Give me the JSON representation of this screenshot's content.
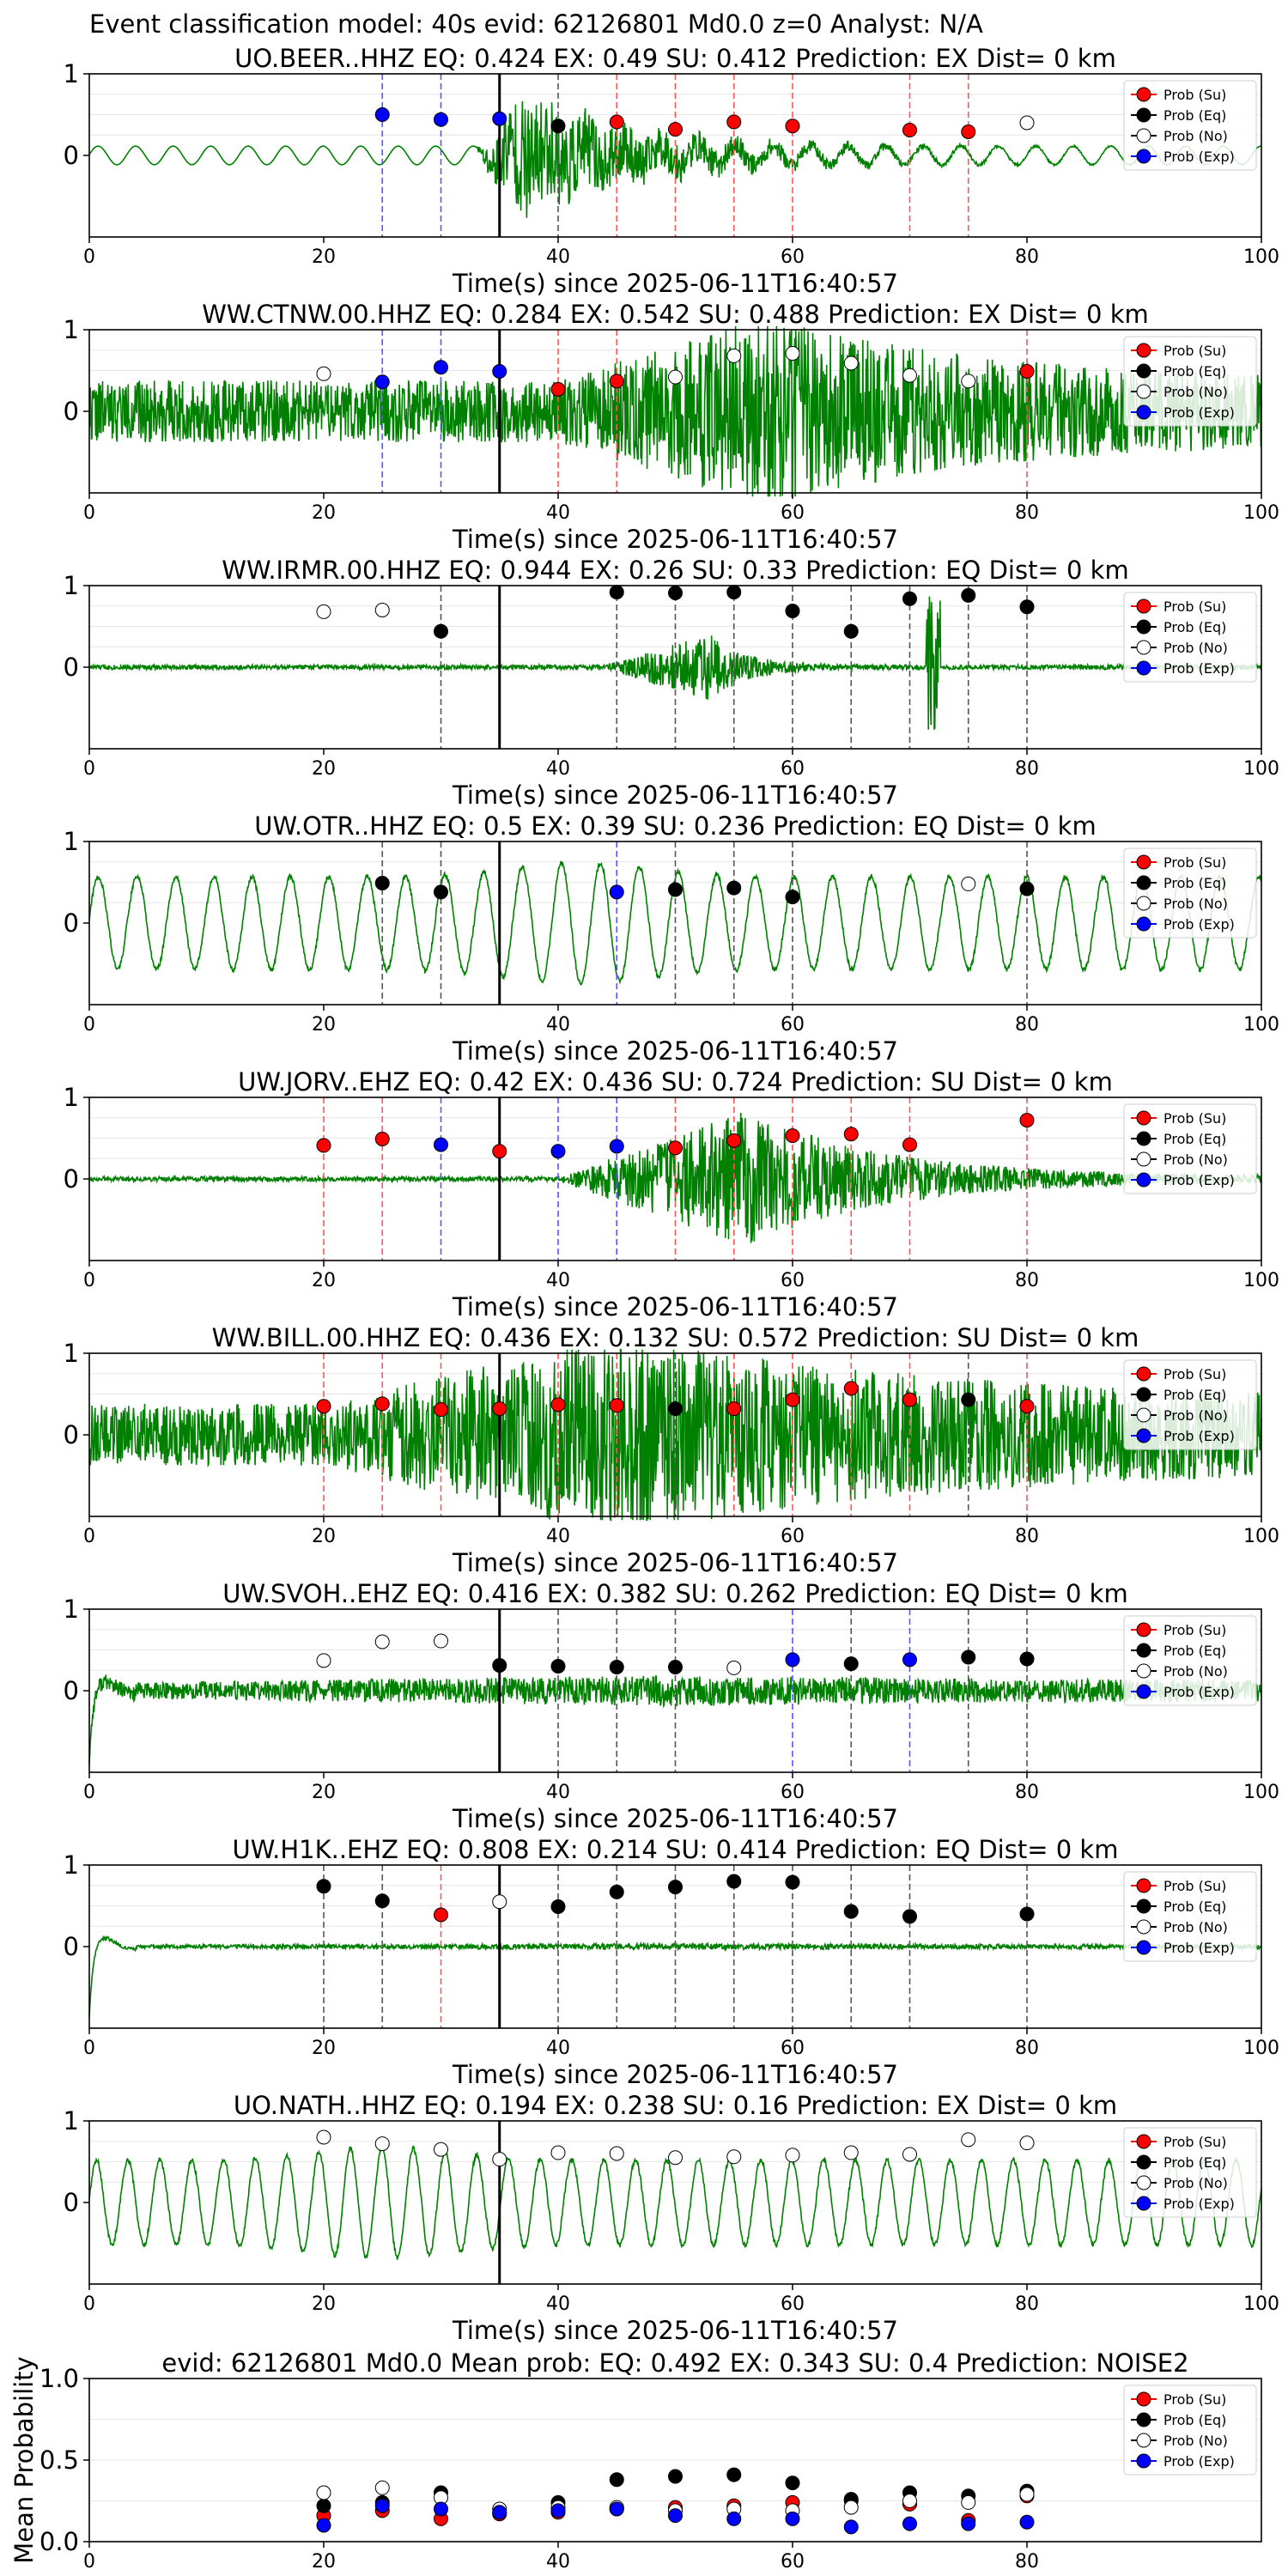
{
  "figure_title": "Event classification model: 40s evid: 62126801 Md0.0 z=0 Analyst: N/A",
  "colors": {
    "su": "#ff0000",
    "eq": "#000000",
    "no": "#ffffff",
    "exp": "#0000ff",
    "waveform": "#008000"
  },
  "chart_data": [
    {
      "type": "scatter",
      "title": "UO.BEER..HHZ   EQ: 0.424  EX: 0.49  SU: 0.412   Prediction: EX    Dist= 0 km",
      "xlabel": "Time(s) since 2025-06-11T16:40:57",
      "xlim": [
        0,
        100
      ],
      "ylim": [
        -1,
        1
      ],
      "x_ticks": [
        0,
        20,
        40,
        60,
        80,
        100
      ],
      "y_ticks": [
        0,
        1
      ],
      "legend": [
        "Prob (Su)",
        "Prob (Eq)",
        "Prob (No)",
        "Prob (Exp)"
      ],
      "legend_position": "upper right",
      "origin_line_x": 35,
      "grid": true,
      "waveform": {
        "style": "emergent",
        "onset": 33,
        "peak": 37,
        "base": 0.12,
        "amp": 0.8,
        "period": 3.2,
        "decay": 11,
        "seed": 11
      },
      "points": [
        {
          "x": 25,
          "y": 0.5,
          "class": "exp"
        },
        {
          "x": 30,
          "y": 0.44,
          "class": "exp"
        },
        {
          "x": 35,
          "y": 0.45,
          "class": "exp"
        },
        {
          "x": 40,
          "y": 0.36,
          "class": "eq"
        },
        {
          "x": 45,
          "y": 0.41,
          "class": "su"
        },
        {
          "x": 50,
          "y": 0.32,
          "class": "su"
        },
        {
          "x": 55,
          "y": 0.41,
          "class": "su"
        },
        {
          "x": 60,
          "y": 0.36,
          "class": "su"
        },
        {
          "x": 70,
          "y": 0.31,
          "class": "su"
        },
        {
          "x": 75,
          "y": 0.29,
          "class": "su"
        },
        {
          "x": 80,
          "y": 0.4,
          "class": "no"
        }
      ]
    },
    {
      "type": "scatter",
      "title": "WW.CTNW.00.HHZ   EQ: 0.284  EX: 0.542  SU: 0.488   Prediction: EX    Dist= 0 km",
      "xlabel": "Time(s) since 2025-06-11T16:40:57",
      "xlim": [
        0,
        100
      ],
      "ylim": [
        -1,
        1
      ],
      "x_ticks": [
        0,
        20,
        40,
        60,
        80,
        100
      ],
      "y_ticks": [
        0,
        1
      ],
      "legend": [
        "Prob (Su)",
        "Prob (Eq)",
        "Prob (No)",
        "Prob (Exp)"
      ],
      "legend_position": "upper right",
      "origin_line_x": 35,
      "grid": true,
      "waveform": {
        "style": "noisy",
        "onset": 40,
        "peak": 58,
        "base": 0.4,
        "amp": 0.85,
        "period": 0.3,
        "decay": 18,
        "seed": 22
      },
      "points": [
        {
          "x": 20,
          "y": 0.46,
          "class": "no"
        },
        {
          "x": 25,
          "y": 0.36,
          "class": "exp"
        },
        {
          "x": 30,
          "y": 0.54,
          "class": "exp"
        },
        {
          "x": 35,
          "y": 0.49,
          "class": "exp"
        },
        {
          "x": 40,
          "y": 0.27,
          "class": "su"
        },
        {
          "x": 45,
          "y": 0.37,
          "class": "su"
        },
        {
          "x": 50,
          "y": 0.42,
          "class": "no"
        },
        {
          "x": 55,
          "y": 0.68,
          "class": "no"
        },
        {
          "x": 60,
          "y": 0.71,
          "class": "no"
        },
        {
          "x": 65,
          "y": 0.59,
          "class": "no"
        },
        {
          "x": 70,
          "y": 0.44,
          "class": "no"
        },
        {
          "x": 75,
          "y": 0.37,
          "class": "no"
        },
        {
          "x": 80,
          "y": 0.49,
          "class": "su"
        }
      ]
    },
    {
      "type": "scatter",
      "title": "WW.IRMR.00.HHZ   EQ: 0.944  EX: 0.26  SU: 0.33   Prediction: EQ    Dist= 0 km",
      "xlabel": "Time(s) since 2025-06-11T16:40:57",
      "xlim": [
        0,
        100
      ],
      "ylim": [
        -1,
        1
      ],
      "x_ticks": [
        0,
        20,
        40,
        60,
        80,
        100
      ],
      "y_ticks": [
        0,
        1
      ],
      "legend": [
        "Prob (Su)",
        "Prob (Eq)",
        "Prob (No)",
        "Prob (Exp)"
      ],
      "legend_position": "upper right",
      "origin_line_x": 35,
      "grid": true,
      "waveform": {
        "style": "spiky",
        "onset": 44,
        "peak": 53,
        "base": 0.03,
        "amp": 0.4,
        "period": 0.3,
        "decay": 3,
        "seed": 33,
        "spike_x": 72,
        "spike_amp": 0.95
      },
      "points": [
        {
          "x": 20,
          "y": 0.68,
          "class": "no"
        },
        {
          "x": 25,
          "y": 0.7,
          "class": "no"
        },
        {
          "x": 30,
          "y": 0.44,
          "class": "eq"
        },
        {
          "x": 45,
          "y": 0.92,
          "class": "eq"
        },
        {
          "x": 50,
          "y": 0.91,
          "class": "eq"
        },
        {
          "x": 55,
          "y": 0.92,
          "class": "eq"
        },
        {
          "x": 60,
          "y": 0.69,
          "class": "eq"
        },
        {
          "x": 65,
          "y": 0.44,
          "class": "eq"
        },
        {
          "x": 70,
          "y": 0.84,
          "class": "eq"
        },
        {
          "x": 75,
          "y": 0.88,
          "class": "eq"
        },
        {
          "x": 80,
          "y": 0.74,
          "class": "eq"
        }
      ]
    },
    {
      "type": "scatter",
      "title": "UW.OTR..HHZ   EQ: 0.5  EX: 0.39  SU: 0.236   Prediction: EQ    Dist= 0 km",
      "xlabel": "Time(s) since 2025-06-11T16:40:57",
      "xlim": [
        0,
        100
      ],
      "ylim": [
        -1,
        1
      ],
      "x_ticks": [
        0,
        20,
        40,
        60,
        80,
        100
      ],
      "y_ticks": [
        0,
        1
      ],
      "legend": [
        "Prob (Su)",
        "Prob (Eq)",
        "Prob (No)",
        "Prob (Exp)"
      ],
      "legend_position": "upper right",
      "origin_line_x": 35,
      "grid": true,
      "waveform": {
        "style": "sine",
        "onset": 0,
        "peak": 42,
        "base": 0.6,
        "amp": 0.85,
        "period": 3.3,
        "decay": 40,
        "seed": 44
      },
      "points": [
        {
          "x": 25,
          "y": 0.49,
          "class": "eq"
        },
        {
          "x": 30,
          "y": 0.38,
          "class": "eq"
        },
        {
          "x": 45,
          "y": 0.38,
          "class": "exp"
        },
        {
          "x": 50,
          "y": 0.41,
          "class": "eq"
        },
        {
          "x": 55,
          "y": 0.43,
          "class": "eq"
        },
        {
          "x": 60,
          "y": 0.32,
          "class": "eq"
        },
        {
          "x": 75,
          "y": 0.48,
          "class": "no"
        },
        {
          "x": 80,
          "y": 0.42,
          "class": "eq"
        }
      ]
    },
    {
      "type": "scatter",
      "title": "UW.JORV..EHZ   EQ: 0.42  EX: 0.436  SU: 0.724   Prediction: SU    Dist= 0 km",
      "xlabel": "Time(s) since 2025-06-11T16:40:57",
      "xlim": [
        0,
        100
      ],
      "ylim": [
        -1,
        1
      ],
      "x_ticks": [
        0,
        20,
        40,
        60,
        80,
        100
      ],
      "y_ticks": [
        0,
        1
      ],
      "legend": [
        "Prob (Su)",
        "Prob (Eq)",
        "Prob (No)",
        "Prob (Exp)"
      ],
      "legend_position": "upper right",
      "origin_line_x": 35,
      "grid": true,
      "waveform": {
        "style": "emergent",
        "onset": 40,
        "peak": 56,
        "base": 0.03,
        "amp": 0.85,
        "period": 0.35,
        "decay": 12,
        "seed": 55
      },
      "points": [
        {
          "x": 20,
          "y": 0.41,
          "class": "su"
        },
        {
          "x": 25,
          "y": 0.49,
          "class": "su"
        },
        {
          "x": 30,
          "y": 0.42,
          "class": "exp"
        },
        {
          "x": 35,
          "y": 0.34,
          "class": "su"
        },
        {
          "x": 40,
          "y": 0.34,
          "class": "exp"
        },
        {
          "x": 45,
          "y": 0.4,
          "class": "exp"
        },
        {
          "x": 50,
          "y": 0.38,
          "class": "su"
        },
        {
          "x": 55,
          "y": 0.47,
          "class": "su"
        },
        {
          "x": 60,
          "y": 0.53,
          "class": "su"
        },
        {
          "x": 65,
          "y": 0.55,
          "class": "su"
        },
        {
          "x": 70,
          "y": 0.42,
          "class": "su"
        },
        {
          "x": 80,
          "y": 0.72,
          "class": "su"
        }
      ]
    },
    {
      "type": "scatter",
      "title": "WW.BILL.00.HHZ   EQ: 0.436  EX: 0.132  SU: 0.572   Prediction: SU    Dist= 0 km",
      "xlabel": "Time(s) since 2025-06-11T16:40:57",
      "xlim": [
        0,
        100
      ],
      "ylim": [
        -1,
        1
      ],
      "x_ticks": [
        0,
        20,
        40,
        60,
        80,
        100
      ],
      "y_ticks": [
        0,
        1
      ],
      "legend": [
        "Prob (Su)",
        "Prob (Eq)",
        "Prob (No)",
        "Prob (Exp)"
      ],
      "legend_position": "upper right",
      "origin_line_x": 35,
      "grid": true,
      "waveform": {
        "style": "noisy",
        "onset": 20,
        "peak": 45,
        "base": 0.4,
        "amp": 0.9,
        "period": 0.3,
        "decay": 30,
        "seed": 66
      },
      "points": [
        {
          "x": 20,
          "y": 0.35,
          "class": "su"
        },
        {
          "x": 25,
          "y": 0.38,
          "class": "su"
        },
        {
          "x": 30,
          "y": 0.31,
          "class": "su"
        },
        {
          "x": 35,
          "y": 0.32,
          "class": "su"
        },
        {
          "x": 40,
          "y": 0.37,
          "class": "su"
        },
        {
          "x": 45,
          "y": 0.36,
          "class": "su"
        },
        {
          "x": 50,
          "y": 0.32,
          "class": "eq"
        },
        {
          "x": 55,
          "y": 0.32,
          "class": "su"
        },
        {
          "x": 60,
          "y": 0.43,
          "class": "su"
        },
        {
          "x": 65,
          "y": 0.57,
          "class": "su"
        },
        {
          "x": 70,
          "y": 0.43,
          "class": "su"
        },
        {
          "x": 75,
          "y": 0.43,
          "class": "eq"
        },
        {
          "x": 80,
          "y": 0.35,
          "class": "su"
        }
      ]
    },
    {
      "type": "scatter",
      "title": "UW.SVOH..EHZ   EQ: 0.416  EX: 0.382  SU: 0.262   Prediction: EQ    Dist= 0 km",
      "xlabel": "Time(s) since 2025-06-11T16:40:57",
      "xlim": [
        0,
        100
      ],
      "ylim": [
        -1,
        1
      ],
      "x_ticks": [
        0,
        20,
        40,
        60,
        80,
        100
      ],
      "y_ticks": [
        0,
        1
      ],
      "legend": [
        "Prob (Su)",
        "Prob (Eq)",
        "Prob (No)",
        "Prob (Exp)"
      ],
      "legend_position": "upper right",
      "origin_line_x": 35,
      "grid": true,
      "waveform": {
        "style": "transient",
        "onset": 0,
        "peak": 50,
        "base": 0.1,
        "amp": 0.1,
        "period": 0.3,
        "decay": 50,
        "seed": 77
      },
      "points": [
        {
          "x": 20,
          "y": 0.37,
          "class": "no"
        },
        {
          "x": 25,
          "y": 0.6,
          "class": "no"
        },
        {
          "x": 30,
          "y": 0.61,
          "class": "no"
        },
        {
          "x": 35,
          "y": 0.31,
          "class": "eq"
        },
        {
          "x": 40,
          "y": 0.3,
          "class": "eq"
        },
        {
          "x": 45,
          "y": 0.29,
          "class": "eq"
        },
        {
          "x": 50,
          "y": 0.29,
          "class": "eq"
        },
        {
          "x": 55,
          "y": 0.28,
          "class": "no"
        },
        {
          "x": 60,
          "y": 0.38,
          "class": "exp"
        },
        {
          "x": 65,
          "y": 0.33,
          "class": "eq"
        },
        {
          "x": 70,
          "y": 0.38,
          "class": "exp"
        },
        {
          "x": 75,
          "y": 0.41,
          "class": "eq"
        },
        {
          "x": 80,
          "y": 0.39,
          "class": "eq"
        }
      ]
    },
    {
      "type": "scatter",
      "title": "UW.H1K..EHZ   EQ: 0.808  EX: 0.214  SU: 0.414   Prediction: EQ    Dist= 0 km",
      "xlabel": "Time(s) since 2025-06-11T16:40:57",
      "xlim": [
        0,
        100
      ],
      "ylim": [
        -1,
        1
      ],
      "x_ticks": [
        0,
        20,
        40,
        60,
        80,
        100
      ],
      "y_ticks": [
        0,
        1
      ],
      "legend": [
        "Prob (Su)",
        "Prob (Eq)",
        "Prob (No)",
        "Prob (Exp)"
      ],
      "legend_position": "upper right",
      "origin_line_x": 35,
      "grid": true,
      "waveform": {
        "style": "transient",
        "onset": 0,
        "peak": 50,
        "base": 0.02,
        "amp": 0.02,
        "period": 0.3,
        "decay": 50,
        "seed": 88
      },
      "points": [
        {
          "x": 20,
          "y": 0.74,
          "class": "eq"
        },
        {
          "x": 25,
          "y": 0.56,
          "class": "eq"
        },
        {
          "x": 30,
          "y": 0.39,
          "class": "su"
        },
        {
          "x": 35,
          "y": 0.55,
          "class": "no"
        },
        {
          "x": 40,
          "y": 0.49,
          "class": "eq"
        },
        {
          "x": 45,
          "y": 0.67,
          "class": "eq"
        },
        {
          "x": 50,
          "y": 0.73,
          "class": "eq"
        },
        {
          "x": 55,
          "y": 0.8,
          "class": "eq"
        },
        {
          "x": 60,
          "y": 0.79,
          "class": "eq"
        },
        {
          "x": 65,
          "y": 0.43,
          "class": "eq"
        },
        {
          "x": 70,
          "y": 0.37,
          "class": "eq"
        },
        {
          "x": 80,
          "y": 0.4,
          "class": "eq"
        }
      ]
    },
    {
      "type": "scatter",
      "title": "UO.NATH..HHZ   EQ: 0.194  EX: 0.238  SU: 0.16   Prediction: EX    Dist= 0 km",
      "xlabel": "Time(s) since 2025-06-11T16:40:57",
      "xlim": [
        0,
        100
      ],
      "ylim": [
        -1,
        1
      ],
      "x_ticks": [
        0,
        20,
        40,
        60,
        80,
        100
      ],
      "y_ticks": [
        0,
        1
      ],
      "legend": [
        "Prob (Su)",
        "Prob (Eq)",
        "Prob (No)",
        "Prob (Exp)"
      ],
      "legend_position": "upper right",
      "origin_line_x": 35,
      "grid": true,
      "waveform": {
        "style": "sine",
        "onset": 0,
        "peak": 25,
        "base": 0.55,
        "amp": 0.9,
        "period": 2.7,
        "decay": 60,
        "seed": 99
      },
      "points": [
        {
          "x": 20,
          "y": 0.8,
          "class": "no"
        },
        {
          "x": 25,
          "y": 0.72,
          "class": "no"
        },
        {
          "x": 30,
          "y": 0.65,
          "class": "no"
        },
        {
          "x": 35,
          "y": 0.53,
          "class": "no"
        },
        {
          "x": 40,
          "y": 0.61,
          "class": "no"
        },
        {
          "x": 45,
          "y": 0.6,
          "class": "no"
        },
        {
          "x": 50,
          "y": 0.55,
          "class": "no"
        },
        {
          "x": 55,
          "y": 0.56,
          "class": "no"
        },
        {
          "x": 60,
          "y": 0.58,
          "class": "no"
        },
        {
          "x": 65,
          "y": 0.61,
          "class": "no"
        },
        {
          "x": 70,
          "y": 0.59,
          "class": "no"
        },
        {
          "x": 75,
          "y": 0.77,
          "class": "no"
        },
        {
          "x": 80,
          "y": 0.73,
          "class": "no"
        }
      ]
    },
    {
      "type": "scatter",
      "title": "evid: 62126801  Md0.0   Mean prob:   EQ: 0.492  EX: 0.343  SU: 0.4   Prediction: NOISE2",
      "xlabel": "",
      "ylabel": "Mean Probability",
      "xlim": [
        0,
        100
      ],
      "ylim": [
        0,
        1
      ],
      "x_ticks": [
        0,
        20,
        40,
        60,
        80
      ],
      "y_ticks": [
        0.0,
        0.5,
        1.0
      ],
      "legend": [
        "Prob (Su)",
        "Prob (Eq)",
        "Prob (No)",
        "Prob (Exp)"
      ],
      "legend_position": "upper right",
      "grid": true,
      "series": [
        {
          "name": "Prob (Su)",
          "class": "su",
          "x": [
            20,
            25,
            30,
            35,
            40,
            45,
            50,
            55,
            60,
            65,
            70,
            75,
            80
          ],
          "values": [
            0.16,
            0.19,
            0.14,
            0.17,
            0.18,
            0.2,
            0.21,
            0.22,
            0.24,
            0.25,
            0.23,
            0.13,
            0.28
          ]
        },
        {
          "name": "Prob (Eq)",
          "class": "eq",
          "x": [
            20,
            25,
            30,
            35,
            40,
            45,
            50,
            55,
            60,
            65,
            70,
            75,
            80
          ],
          "values": [
            0.22,
            0.24,
            0.3,
            0.18,
            0.24,
            0.38,
            0.4,
            0.41,
            0.36,
            0.26,
            0.3,
            0.28,
            0.31
          ]
        },
        {
          "name": "Prob (No)",
          "class": "no",
          "x": [
            20,
            25,
            30,
            35,
            40,
            45,
            50,
            55,
            60,
            65,
            70,
            75,
            80
          ],
          "values": [
            0.3,
            0.33,
            0.27,
            0.2,
            0.21,
            0.21,
            0.19,
            0.2,
            0.19,
            0.21,
            0.25,
            0.24,
            0.29
          ]
        },
        {
          "name": "Prob (Exp)",
          "class": "exp",
          "x": [
            20,
            25,
            30,
            35,
            40,
            45,
            50,
            55,
            60,
            65,
            70,
            75,
            80
          ],
          "values": [
            0.1,
            0.22,
            0.2,
            0.18,
            0.19,
            0.2,
            0.16,
            0.14,
            0.14,
            0.09,
            0.11,
            0.11,
            0.12
          ]
        }
      ]
    }
  ]
}
